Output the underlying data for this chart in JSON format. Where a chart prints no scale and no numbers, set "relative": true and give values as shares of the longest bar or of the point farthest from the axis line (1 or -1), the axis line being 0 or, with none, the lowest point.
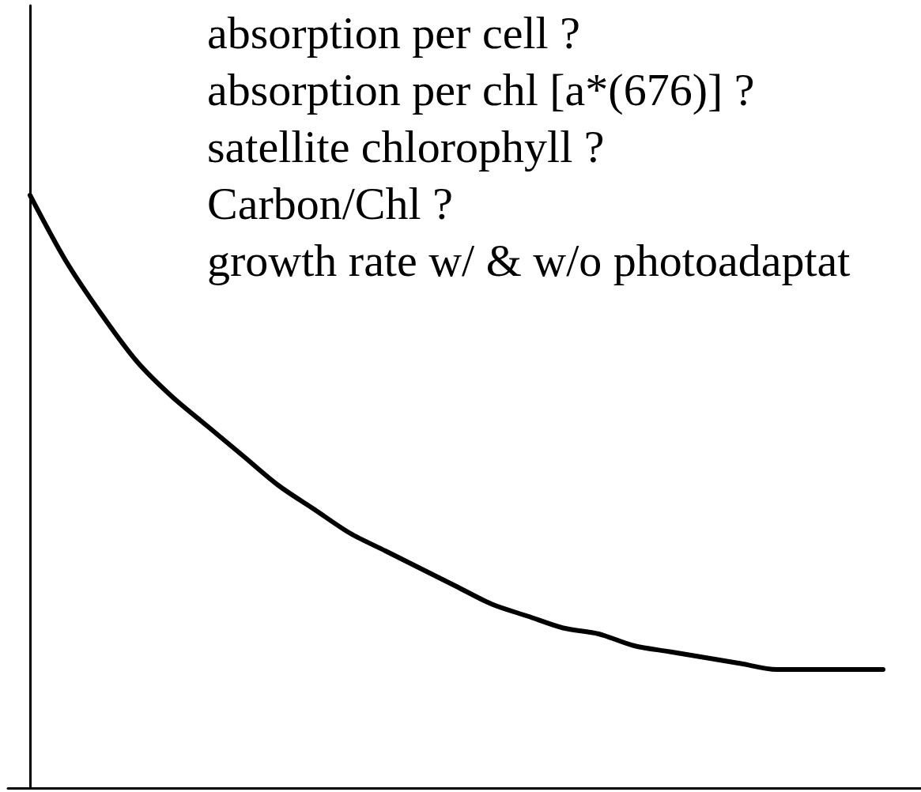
{
  "chart_data": {
    "type": "line",
    "relative": true,
    "categories": [
      null,
      null,
      null,
      null,
      null,
      null,
      null,
      null,
      null,
      null,
      null,
      null,
      null,
      null,
      null,
      null,
      null,
      null,
      null,
      null,
      null,
      null,
      null,
      null,
      null
    ],
    "values": [
      1,
      0.89,
      0.8,
      0.72,
      0.66,
      0.61,
      0.56,
      0.51,
      0.47,
      0.43,
      0.4,
      0.37,
      0.34,
      0.31,
      0.29,
      0.27,
      0.26,
      0.24,
      0.23,
      0.22,
      0.21,
      0.2,
      0.2,
      0.2,
      0.2
    ],
    "color": "#000000",
    "marker": "none",
    "line_style": "solid",
    "annotations": [
      "absorption per cell ?",
      "absorption per chl [a*(676)] ?",
      "satellite chlorophyll ?",
      "Carbon/Chl ?",
      "growth rate w/ & w/o photoadaptat"
    ]
  }
}
